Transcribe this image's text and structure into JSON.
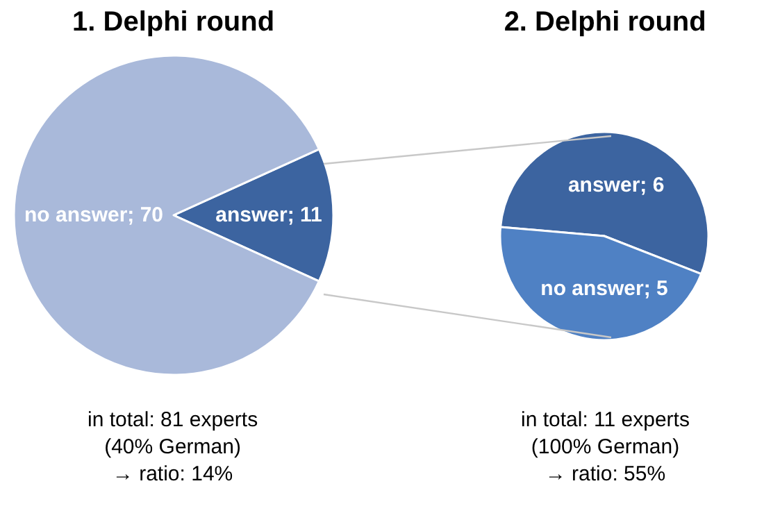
{
  "chart_data": [
    {
      "type": "pie",
      "title": "1. Delphi round",
      "categories": [
        "answer; 11",
        "no answer; 70"
      ],
      "values": [
        11,
        70
      ],
      "colors": [
        "#3c64a0",
        "#a9b9da"
      ],
      "legend": false,
      "annotations": [
        "in total: 81 experts",
        "(40% German)",
        "→ ratio: 14%"
      ]
    },
    {
      "type": "pie",
      "title": "2. Delphi round",
      "categories": [
        "answer; 6",
        "no answer; 5"
      ],
      "values": [
        6,
        5
      ],
      "colors": [
        "#3c64a0",
        "#4f81c4"
      ],
      "legend": false,
      "annotations": [
        "in total: 11 experts",
        "(100% German)",
        "→ ratio: 55%"
      ]
    }
  ]
}
